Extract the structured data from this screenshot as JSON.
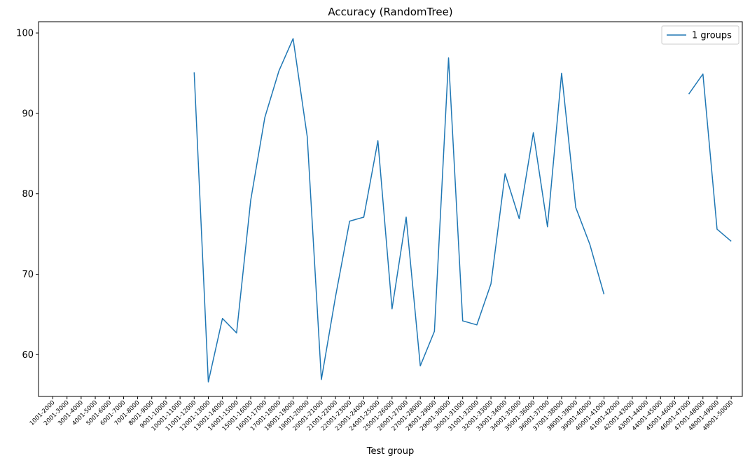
{
  "chart_data": {
    "type": "line",
    "title": "Accuracy (RandomTree)",
    "xlabel": "Test group",
    "ylabel": "",
    "categories": [
      "1001-2000",
      "2001-3000",
      "3001-4000",
      "4001-5000",
      "5001-6000",
      "6001-7000",
      "7001-8000",
      "8001-9000",
      "9001-10000",
      "10001-11000",
      "11001-12000",
      "12001-13000",
      "13001-14000",
      "14001-15000",
      "15001-16000",
      "16001-17000",
      "17001-18000",
      "18001-19000",
      "19001-20000",
      "20001-21000",
      "21001-22000",
      "22001-23000",
      "23001-24000",
      "24001-25000",
      "25001-26000",
      "26001-27000",
      "27001-28000",
      "28001-29000",
      "29001-30000",
      "30001-31000",
      "31001-32000",
      "32001-33000",
      "33001-34000",
      "34001-35000",
      "35001-36000",
      "36001-37000",
      "37001-38000",
      "38001-39000",
      "39001-40000",
      "40001-41000",
      "41001-42000",
      "42001-43000",
      "43001-44000",
      "44001-45000",
      "45001-46000",
      "46001-47000",
      "47001-48000",
      "48001-49000",
      "49001-50000"
    ],
    "series": [
      {
        "name": "1 groups",
        "color": "#1f77b4",
        "values": [
          null,
          null,
          null,
          null,
          null,
          null,
          null,
          null,
          null,
          null,
          95.1,
          56.6,
          64.5,
          62.7,
          79.2,
          89.5,
          95.3,
          99.3,
          87.1,
          56.9,
          67.2,
          76.6,
          77.1,
          86.6,
          65.7,
          77.1,
          58.6,
          62.9,
          96.9,
          64.2,
          63.7,
          68.8,
          82.5,
          76.9,
          87.6,
          75.9,
          95.0,
          78.3,
          73.7,
          67.5,
          null,
          null,
          null,
          null,
          null,
          92.4,
          94.9,
          75.6,
          74.1
        ]
      }
    ],
    "yticks": [
      60,
      70,
      80,
      90,
      100
    ],
    "ylim": [
      54.8,
      101.4
    ],
    "grid": false,
    "legend": {
      "position": "top-right",
      "entries": [
        "1 groups"
      ]
    }
  }
}
